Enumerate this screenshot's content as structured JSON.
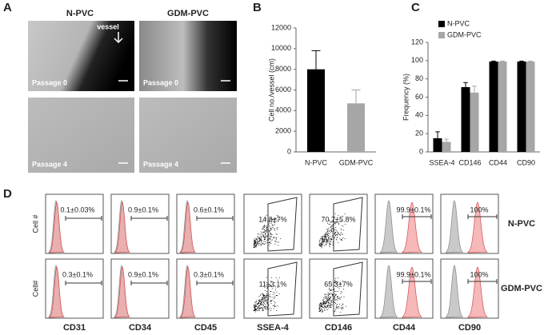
{
  "panel_labels": [
    "A",
    "B",
    "C",
    "D"
  ],
  "panel_a": {
    "columns": [
      "N-PVC",
      "GDM-PVC"
    ],
    "arrow_label": "vessel",
    "passages": [
      "Passage 0",
      "Passage 0",
      "Passage 4",
      "Passage 4"
    ]
  },
  "chart_data": [
    {
      "type": "bar",
      "y_label": "Cell no./vessel (cm)",
      "categories": [
        "N-PVC",
        "GDM-PVC"
      ],
      "values": [
        8000,
        4700
      ],
      "errors": [
        1800,
        1300
      ],
      "colors": [
        "#000000",
        "#a6a6a6"
      ],
      "ylim": [
        0,
        12000
      ],
      "yticks": [
        0,
        2000,
        4000,
        6000,
        8000,
        10000,
        12000
      ]
    },
    {
      "type": "grouped_bar",
      "y_label": "Frequency (%)",
      "categories": [
        "SSEA-4",
        "CD146",
        "CD44",
        "CD90"
      ],
      "series": [
        {
          "name": "N-PVC",
          "color": "#000000",
          "values": [
            15,
            71,
            99,
            99
          ],
          "errors": [
            7,
            5,
            0.5,
            0.5
          ]
        },
        {
          "name": "GDM-PVC",
          "color": "#a6a6a6",
          "values": [
            11,
            65,
            99,
            99
          ],
          "errors": [
            3,
            7,
            0.5,
            0.5
          ]
        }
      ],
      "ylim": [
        0,
        120
      ],
      "yticks": [
        0,
        20,
        40,
        60,
        80,
        100,
        120
      ],
      "legend": "top-left"
    }
  ],
  "panel_d": {
    "row_labels": [
      "Cell #",
      "Cell#"
    ],
    "groups": [
      "N-PVC",
      "GDM-PVC"
    ],
    "markers": [
      "CD31",
      "CD34",
      "CD45",
      "SSEA-4",
      "CD146",
      "CD44",
      "CD90"
    ],
    "percentages": [
      [
        "0.1±0.03%",
        "0.9±0.1%",
        "0.6±0.1%",
        "14.8±7%",
        "70.7±5.8%",
        "99.9±0.1%",
        "100%"
      ],
      [
        "0.3±0.1%",
        "0.9±0.1%",
        "0.3±0.1%",
        "11±3.1%",
        "65.3±7%",
        "99.9±0.1%",
        "100%"
      ]
    ]
  }
}
